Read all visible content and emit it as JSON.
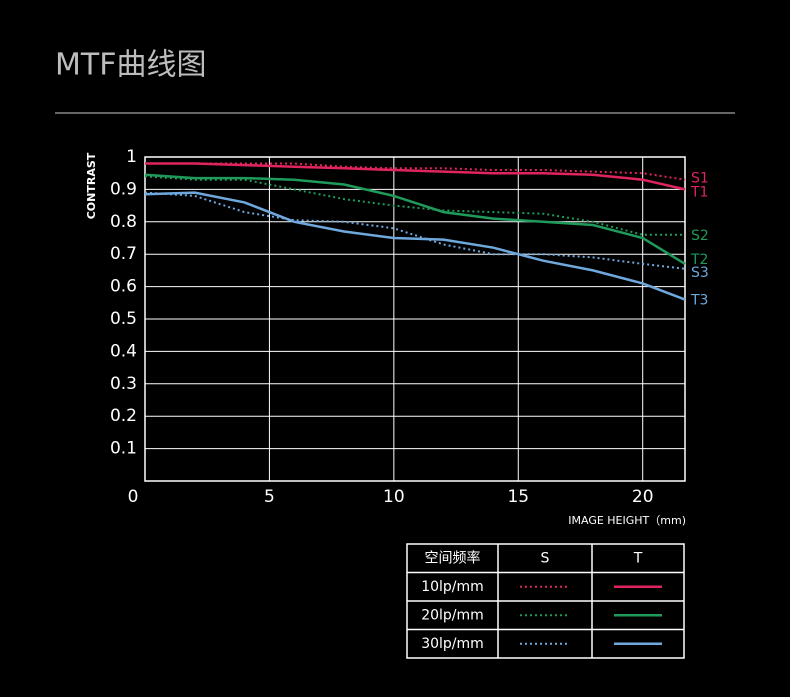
{
  "title": "MTF曲线图",
  "chart_data": {
    "type": "line",
    "y_label": "CONTRAST",
    "x_label": "IMAGE HEIGHT（mm)",
    "x": [
      0,
      2,
      4,
      6,
      8,
      10,
      12,
      14,
      16,
      18,
      20,
      21.7
    ],
    "xlim": [
      0,
      21.7
    ],
    "xticks": [
      0,
      5,
      10,
      15,
      20
    ],
    "ylim": [
      0,
      1
    ],
    "yticks": [
      0.1,
      0.2,
      0.3,
      0.4,
      0.5,
      0.6,
      0.7,
      0.8,
      0.9,
      1
    ],
    "grid": true,
    "series": [
      {
        "name": "S1",
        "color": "#e0245e",
        "dashed": true,
        "values": [
          0.98,
          0.98,
          0.98,
          0.98,
          0.97,
          0.965,
          0.965,
          0.96,
          0.96,
          0.955,
          0.95,
          0.93
        ]
      },
      {
        "name": "T1",
        "color": "#e0245e",
        "dashed": false,
        "values": [
          0.98,
          0.98,
          0.975,
          0.97,
          0.965,
          0.96,
          0.955,
          0.95,
          0.95,
          0.945,
          0.93,
          0.9
        ]
      },
      {
        "name": "S2",
        "color": "#1f9a5a",
        "dashed": true,
        "values": [
          0.94,
          0.93,
          0.93,
          0.9,
          0.87,
          0.85,
          0.835,
          0.83,
          0.825,
          0.8,
          0.76,
          0.76
        ]
      },
      {
        "name": "T2",
        "color": "#1f9a5a",
        "dashed": false,
        "values": [
          0.945,
          0.935,
          0.935,
          0.93,
          0.915,
          0.88,
          0.83,
          0.81,
          0.8,
          0.79,
          0.75,
          0.67
        ]
      },
      {
        "name": "S3",
        "color": "#6fa8dc",
        "dashed": true,
        "values": [
          0.89,
          0.88,
          0.83,
          0.805,
          0.8,
          0.78,
          0.73,
          0.7,
          0.7,
          0.69,
          0.67,
          0.655
        ]
      },
      {
        "name": "T3",
        "color": "#6fa8dc",
        "dashed": false,
        "values": [
          0.885,
          0.89,
          0.86,
          0.8,
          0.77,
          0.75,
          0.745,
          0.72,
          0.68,
          0.65,
          0.61,
          0.56
        ]
      }
    ]
  },
  "legend_table": {
    "header": [
      "空间频率",
      "S",
      "T"
    ],
    "rows": [
      "10lp/mm",
      "20lp/mm",
      "30lp/mm"
    ]
  }
}
